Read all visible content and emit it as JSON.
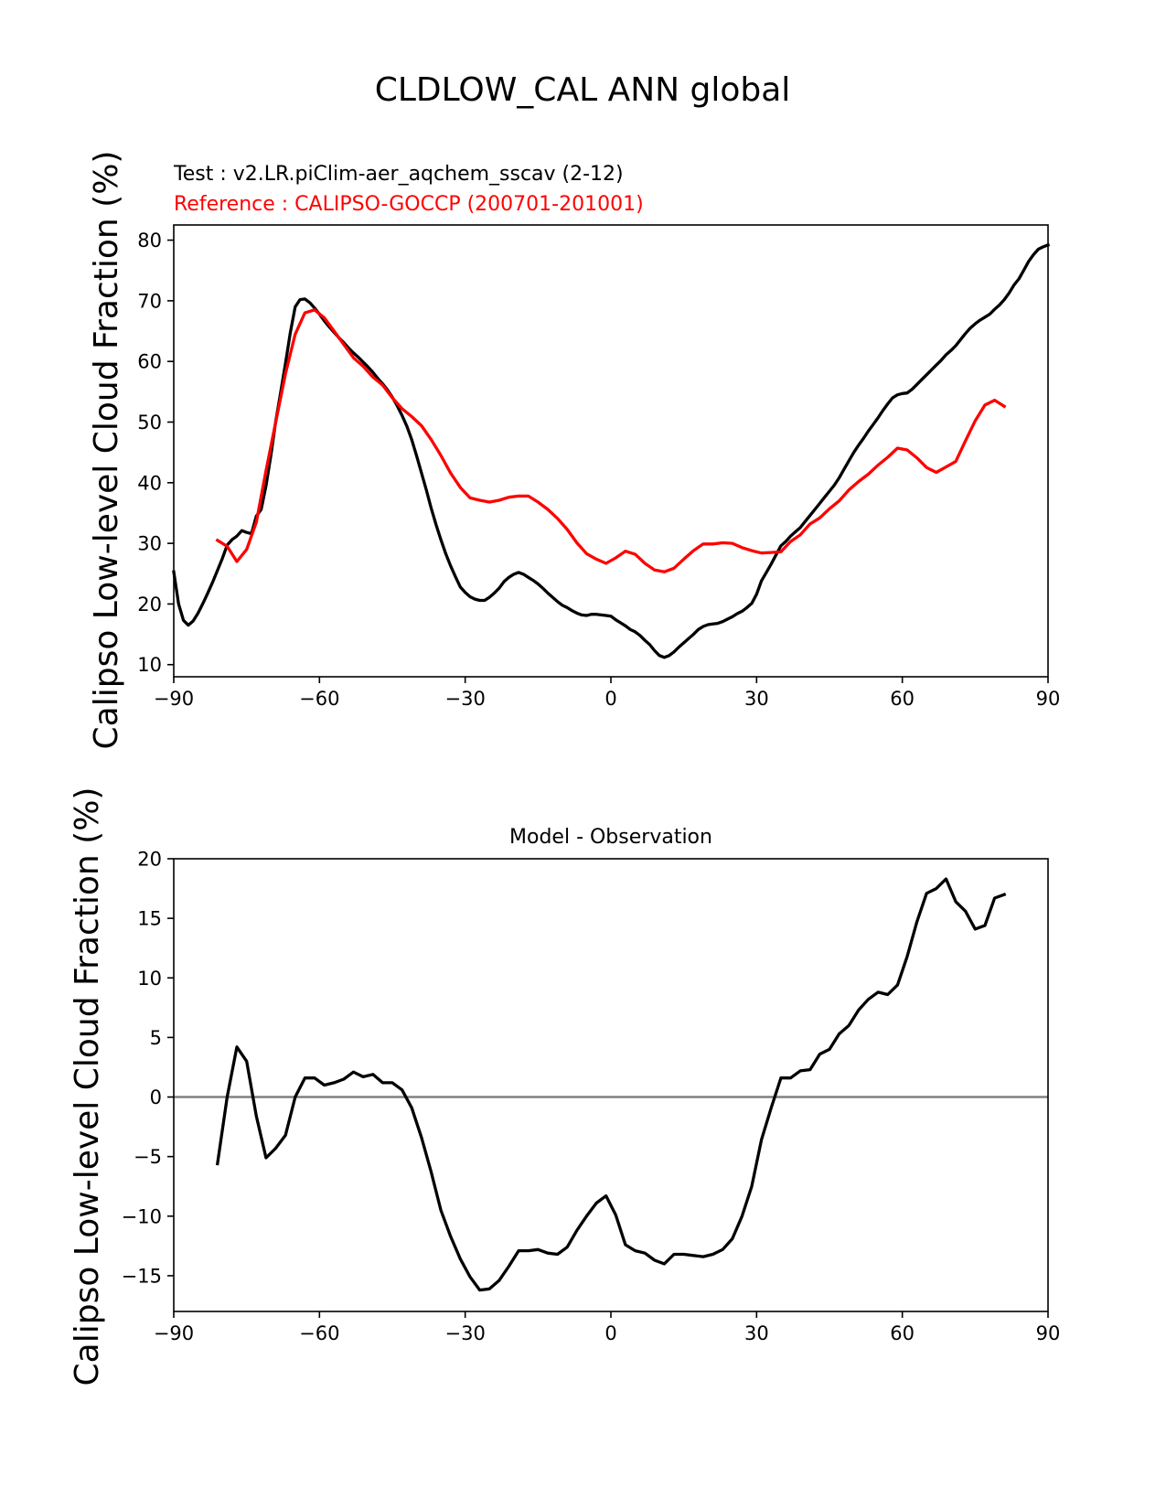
{
  "figure": {
    "title": "CLDLOW_CAL ANN global"
  },
  "chart_data": [
    {
      "type": "line",
      "panel": "top",
      "title": "",
      "legend": {
        "test": "Test : v2.LR.piClim-aer_aqchem_sscav (2-12)",
        "reference": "Reference : CALIPSO-GOCCP (200701-201001)"
      },
      "xlabel": "",
      "ylabel": "Calipso Low-level Cloud Fraction (%)",
      "xlim": [
        -90,
        90
      ],
      "ylim": [
        8,
        82.5
      ],
      "xticks": [
        -90,
        -60,
        -30,
        0,
        30,
        60,
        90
      ],
      "xtick_labels": [
        "−90",
        "−60",
        "−30",
        "0",
        "30",
        "60",
        "90"
      ],
      "yticks": [
        10,
        20,
        30,
        40,
        50,
        60,
        70,
        80
      ],
      "ytick_labels": [
        "10",
        "20",
        "30",
        "40",
        "50",
        "60",
        "70",
        "80"
      ],
      "series": [
        {
          "name": "Test : v2.LR.piClim-aer_aqchem_sscav (2-12)",
          "color": "#000000",
          "x": [
            -90,
            -89,
            -88,
            -87,
            -86,
            -85,
            -84,
            -83,
            -82,
            -80,
            -79,
            -78,
            -77,
            -76,
            -75,
            -74,
            -73,
            -72,
            -71,
            -70,
            -69,
            -68,
            -67,
            -66,
            -65,
            -64,
            -63,
            -62,
            -61,
            -60,
            -59,
            -58,
            -57,
            -56,
            -55,
            -54,
            -53,
            -52,
            -51,
            -50,
            -49,
            -48,
            -47,
            -46,
            -45,
            -44,
            -43,
            -42,
            -41,
            -40,
            -39,
            -38,
            -37,
            -36,
            -35,
            -34,
            -33,
            -32,
            -31,
            -30,
            -29,
            -28,
            -27,
            -26,
            -25,
            -24,
            -23,
            -22,
            -21,
            -20,
            -19,
            -18,
            -17,
            -16,
            -15,
            -14,
            -13,
            -12,
            -11,
            -10,
            -9,
            -8,
            -7,
            -6,
            -5,
            -4,
            -3,
            -2,
            -1,
            0,
            1,
            2,
            3,
            4,
            5,
            6,
            7,
            8,
            9,
            10,
            11,
            12,
            13,
            14,
            15,
            16,
            17,
            18,
            19,
            20,
            21,
            22,
            23,
            24,
            25,
            26,
            27,
            28,
            29,
            30,
            31,
            32,
            33,
            34,
            35,
            36,
            37,
            38,
            39,
            40,
            41,
            42,
            43,
            44,
            45,
            46,
            47,
            48,
            49,
            50,
            51,
            52,
            53,
            54,
            55,
            56,
            57,
            58,
            59,
            60,
            61,
            62,
            63,
            64,
            65,
            66,
            67,
            68,
            69,
            70,
            71,
            72,
            73,
            74,
            75,
            76,
            77,
            78,
            79,
            80,
            81,
            82,
            83,
            84,
            85,
            86,
            87,
            88,
            89,
            90
          ],
          "values": [
            25.3,
            20,
            17.3,
            16.5,
            17.2,
            18.5,
            20.1,
            21.8,
            23.6,
            27.5,
            29.7,
            30.6,
            31.2,
            32.1,
            31.8,
            31.6,
            34.5,
            35.6,
            39.5,
            44.5,
            50.1,
            54.8,
            59.7,
            64.8,
            69,
            70.2,
            70.3,
            69.7,
            68.8,
            67.8,
            66.7,
            65.7,
            64.8,
            63.9,
            63.1,
            62.2,
            61.4,
            60.7,
            59.9,
            59.1,
            58.2,
            57.2,
            56.3,
            55.3,
            54.1,
            52.7,
            51.1,
            49.3,
            47.1,
            44.4,
            41.6,
            38.8,
            35.8,
            33.1,
            30.6,
            28.3,
            26.3,
            24.5,
            22.8,
            21.9,
            21.2,
            20.8,
            20.6,
            20.6,
            21.1,
            21.8,
            22.6,
            23.7,
            24.4,
            24.9,
            25.2,
            24.9,
            24.4,
            23.9,
            23.3,
            22.6,
            21.8,
            21.1,
            20.4,
            19.8,
            19.4,
            18.9,
            18.5,
            18.2,
            18.1,
            18.3,
            18.3,
            18.2,
            18.1,
            18,
            17.4,
            16.9,
            16.4,
            15.8,
            15.4,
            14.8,
            14,
            13.3,
            12.3,
            11.5,
            11.2,
            11.5,
            12.1,
            12.9,
            13.6,
            14.3,
            15,
            15.8,
            16.3,
            16.6,
            16.7,
            16.8,
            17.1,
            17.5,
            17.9,
            18.4,
            18.8,
            19.4,
            20.1,
            21.6,
            23.8,
            25.2,
            26.6,
            28.1,
            29.6,
            30.3,
            31.2,
            31.9,
            32.6,
            33.6,
            34.6,
            35.6,
            36.6,
            37.6,
            38.6,
            39.6,
            40.8,
            42.2,
            43.6,
            45,
            46.2,
            47.3,
            48.5,
            49.6,
            50.7,
            51.9,
            53,
            54,
            54.5,
            54.7,
            54.8,
            55.4,
            56.2,
            57,
            57.8,
            58.6,
            59.4,
            60.2,
            61.1,
            61.8,
            62.6,
            63.6,
            64.6,
            65.5,
            66.2,
            66.8,
            67.3,
            67.8,
            68.6,
            69.3,
            70.2,
            71.3,
            72.6,
            73.6,
            75,
            76.5,
            77.6,
            78.5,
            78.9,
            79.2
          ]
        },
        {
          "name": "Reference : CALIPSO-GOCCP (200701-201001)",
          "color": "#ff0000",
          "x": [
            -81,
            -79,
            -77,
            -75,
            -73,
            -71,
            -69,
            -67,
            -65,
            -63,
            -61,
            -59,
            -57,
            -55,
            -53,
            -51,
            -49,
            -47,
            -45,
            -43,
            -41,
            -39,
            -37,
            -35,
            -33,
            -31,
            -29,
            -27,
            -25,
            -23,
            -21,
            -19,
            -17,
            -15,
            -13,
            -11,
            -9,
            -7,
            -5,
            -3,
            -1,
            1,
            3,
            5,
            7,
            9,
            11,
            13,
            15,
            17,
            19,
            21,
            23,
            25,
            27,
            29,
            31,
            33,
            35,
            37,
            39,
            41,
            43,
            45,
            47,
            49,
            51,
            53,
            55,
            57,
            59,
            61,
            63,
            65,
            67,
            69,
            71,
            73,
            75,
            77,
            79,
            81
          ],
          "values": [
            30.5,
            29.5,
            27,
            29,
            33.5,
            42,
            50,
            58,
            64.5,
            68,
            68.5,
            67.2,
            65,
            62.8,
            60.6,
            59.2,
            57.4,
            56.1,
            54,
            52.2,
            50.9,
            49.4,
            47.1,
            44.5,
            41.6,
            39.2,
            37.5,
            37.1,
            36.8,
            37.1,
            37.6,
            37.8,
            37.8,
            36.8,
            35.6,
            34.1,
            32.3,
            30.1,
            28.3,
            27.4,
            26.7,
            27.6,
            28.7,
            28.2,
            26.7,
            25.6,
            25.3,
            25.9,
            27.4,
            28.8,
            29.9,
            29.9,
            30.1,
            30,
            29.3,
            28.8,
            28.4,
            28.5,
            28.6,
            30.3,
            31.4,
            33.2,
            34.2,
            35.7,
            37,
            38.8,
            40.2,
            41.4,
            42.9,
            44.2,
            45.7,
            45.4,
            44.1,
            42.5,
            41.7,
            42.6,
            43.5,
            46.9,
            50.2,
            52.8,
            53.6,
            52.6
          ]
        }
      ]
    },
    {
      "type": "line",
      "panel": "bottom",
      "title": "Model - Observation",
      "xlabel": "",
      "ylabel": "Calipso Low-level Cloud Fraction (%)",
      "xlim": [
        -90,
        90
      ],
      "ylim": [
        -18,
        20
      ],
      "xticks": [
        -90,
        -60,
        -30,
        0,
        30,
        60,
        90
      ],
      "xtick_labels": [
        "−90",
        "−60",
        "−30",
        "0",
        "30",
        "60",
        "90"
      ],
      "yticks": [
        -15,
        -10,
        -5,
        0,
        5,
        10,
        15,
        20
      ],
      "ytick_labels": [
        "−15",
        "−10",
        "−5",
        "0",
        "5",
        "10",
        "15",
        "20"
      ],
      "zero_line": {
        "value": 0,
        "color": "#808080"
      },
      "series": [
        {
          "name": "Model - Observation",
          "color": "#000000",
          "x": [
            -81,
            -79,
            -77,
            -75,
            -73,
            -71,
            -69,
            -67,
            -65,
            -63,
            -61,
            -59,
            -57,
            -55,
            -53,
            -51,
            -49,
            -47,
            -45,
            -43,
            -41,
            -39,
            -37,
            -35,
            -33,
            -31,
            -29,
            -27,
            -25,
            -23,
            -21,
            -19,
            -17,
            -15,
            -13,
            -11,
            -9,
            -7,
            -5,
            -3,
            -1,
            1,
            3,
            5,
            7,
            9,
            11,
            13,
            15,
            17,
            19,
            21,
            23,
            25,
            27,
            29,
            31,
            33,
            35,
            37,
            39,
            41,
            43,
            45,
            47,
            49,
            51,
            53,
            55,
            57,
            59,
            61,
            63,
            65,
            67,
            69,
            71,
            73,
            75,
            77,
            79,
            81
          ],
          "values": [
            -5.6,
            0,
            4.2,
            3,
            -1.6,
            -5.1,
            -4.3,
            -3.2,
            0,
            1.6,
            1.6,
            1,
            1.2,
            1.5,
            2.1,
            1.7,
            1.9,
            1.2,
            1.2,
            0.6,
            -0.9,
            -3.4,
            -6.3,
            -9.5,
            -11.7,
            -13.6,
            -15.1,
            -16.2,
            -16.1,
            -15.4,
            -14.2,
            -12.9,
            -12.9,
            -12.8,
            -13.1,
            -13.2,
            -12.6,
            -11.2,
            -10,
            -8.9,
            -8.3,
            -9.9,
            -12.4,
            -12.9,
            -13.1,
            -13.7,
            -14,
            -13.2,
            -13.2,
            -13.3,
            -13.4,
            -13.2,
            -12.8,
            -11.9,
            -10,
            -7.5,
            -3.6,
            -0.9,
            1.6,
            1.6,
            2.2,
            2.3,
            3.6,
            4,
            5.3,
            6,
            7.3,
            8.2,
            8.8,
            8.6,
            9.4,
            11.8,
            14.7,
            17.1,
            17.5,
            18.3,
            16.4,
            15.6,
            14.1,
            14.4,
            16.7,
            17
          ]
        }
      ]
    }
  ]
}
